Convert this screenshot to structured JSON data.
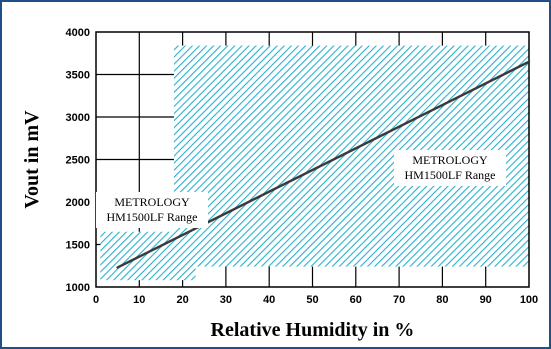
{
  "chart_data": {
    "type": "line",
    "title": "",
    "xlabel": "Relative Humidity in %",
    "ylabel": "Vout in mV",
    "xlim": [
      0,
      100
    ],
    "ylim": [
      1000,
      4000
    ],
    "x_ticks": [
      0,
      10,
      20,
      30,
      40,
      50,
      60,
      70,
      80,
      90,
      100
    ],
    "y_ticks": [
      1000,
      1500,
      2000,
      2500,
      3000,
      3500,
      4000
    ],
    "grid": true,
    "series": [
      {
        "x": [
          5,
          100
        ],
        "y": [
          1230,
          3650
        ],
        "color": "#3a3a3a"
      }
    ],
    "regions": [
      {
        "x": [
          1,
          23
        ],
        "y": [
          1080,
          1650
        ],
        "label_lines": [
          "METROLOGY",
          "HM1500LF Range"
        ]
      },
      {
        "x": [
          18,
          100
        ],
        "y": [
          1240,
          3840
        ],
        "label_lines": [
          "METROLOGY",
          "HM1500LF Range"
        ]
      }
    ],
    "hatch_color": "#2ab0cc"
  }
}
